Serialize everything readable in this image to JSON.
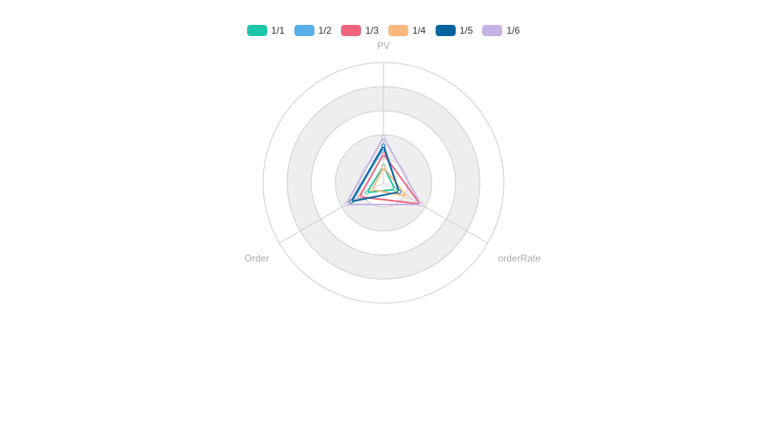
{
  "chart_data": {
    "type": "radar",
    "indicators": [
      {
        "name": "PV",
        "max": 100
      },
      {
        "name": "orderRate",
        "max": 100
      },
      {
        "name": "Order",
        "max": 100
      }
    ],
    "series": [
      {
        "name": "1/1",
        "color": "#1bc7a8",
        "values": [
          14,
          11,
          16
        ]
      },
      {
        "name": "1/2",
        "color": "#58afe8",
        "values": [
          29,
          15,
          30
        ]
      },
      {
        "name": "1/3",
        "color": "#f0657e",
        "values": [
          24,
          35,
          23
        ]
      },
      {
        "name": "1/4",
        "color": "#fbb87c",
        "values": [
          13,
          22,
          11
        ]
      },
      {
        "name": "1/5",
        "color": "#05639f",
        "values": [
          31,
          15,
          31
        ]
      },
      {
        "name": "1/6",
        "color": "#c5b3e6",
        "values": [
          38,
          36,
          36
        ]
      }
    ],
    "split_number": 5,
    "legend_position": "top-center"
  }
}
